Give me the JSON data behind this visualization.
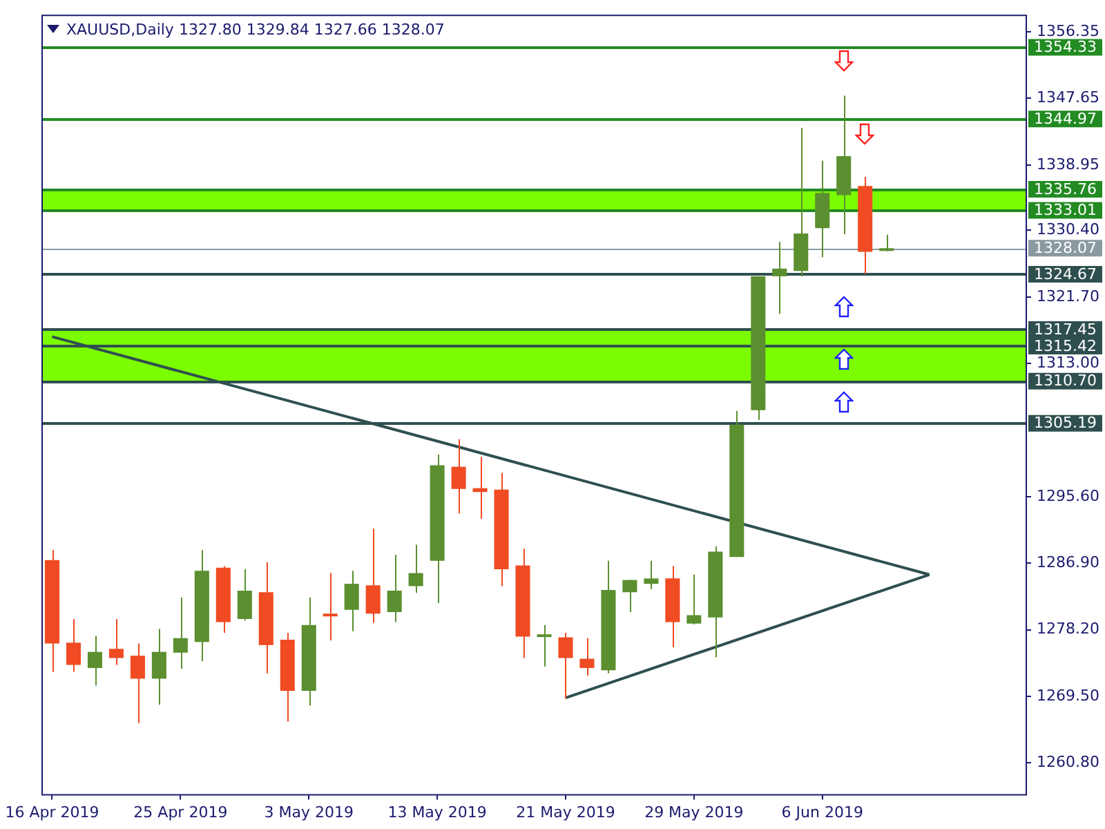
{
  "chart_data": {
    "type": "candlestick",
    "title": "XAUUSD,Daily 1327.80 1329.84 1327.66 1328.07",
    "categories": [
      "16 Apr 2019",
      null,
      null,
      null,
      null,
      null,
      "25 Apr 2019",
      null,
      null,
      null,
      null,
      null,
      "3 May 2019",
      null,
      null,
      null,
      null,
      null,
      "13 May 2019",
      null,
      null,
      null,
      null,
      null,
      "21 May 2019",
      null,
      null,
      null,
      null,
      null,
      "29 May 2019",
      null,
      null,
      null,
      null,
      null,
      "6 Jun 2019",
      null,
      null,
      null,
      null,
      null,
      null,
      null,
      null,
      null
    ],
    "ohlc": [
      [
        1287.3,
        1288.6,
        1272.7,
        1276.4
      ],
      [
        1276.5,
        1279.6,
        1272.7,
        1273.6
      ],
      [
        1273.2,
        1277.4,
        1270.9,
        1275.3
      ],
      [
        1275.7,
        1279.6,
        1273.6,
        1274.5
      ],
      [
        1274.8,
        1276.4,
        1266.0,
        1271.8
      ],
      [
        1271.8,
        1278.3,
        1268.4,
        1275.3
      ],
      [
        1275.2,
        1282.4,
        1273.1,
        1277.1
      ],
      [
        1276.6,
        1288.6,
        1274.1,
        1285.9
      ],
      [
        1286.3,
        1286.5,
        1277.8,
        1279.2
      ],
      [
        1279.6,
        1286.1,
        1279.4,
        1283.3
      ],
      [
        1283.1,
        1287.0,
        1272.5,
        1276.2
      ],
      [
        1276.9,
        1277.8,
        1266.2,
        1270.2
      ],
      [
        1270.2,
        1282.4,
        1268.3,
        1278.8
      ],
      [
        1280.3,
        1285.6,
        1276.8,
        1280.0
      ],
      [
        1280.8,
        1285.9,
        1278.0,
        1284.2
      ],
      [
        1284.0,
        1291.4,
        1279.1,
        1280.3
      ],
      [
        1280.5,
        1288.0,
        1279.2,
        1283.3
      ],
      [
        1283.9,
        1289.3,
        1283.0,
        1285.6
      ],
      [
        1287.2,
        1301.1,
        1281.7,
        1299.7
      ],
      [
        1299.5,
        1303.1,
        1293.4,
        1296.6
      ],
      [
        1296.7,
        1300.8,
        1292.7,
        1296.2
      ],
      [
        1296.5,
        1298.7,
        1283.9,
        1286.1
      ],
      [
        1286.6,
        1288.8,
        1274.5,
        1277.3
      ],
      [
        1277.3,
        1278.8,
        1273.4,
        1277.6
      ],
      [
        1277.2,
        1277.8,
        1269.2,
        1274.5
      ],
      [
        1274.4,
        1277.1,
        1272.2,
        1273.2
      ],
      [
        1272.9,
        1287.2,
        1272.5,
        1283.4
      ],
      [
        1283.1,
        1284.7,
        1280.5,
        1284.7
      ],
      [
        1284.2,
        1287.2,
        1283.5,
        1284.9
      ],
      [
        1284.9,
        1286.5,
        1275.9,
        1279.2
      ],
      [
        1279.0,
        1285.4,
        1278.9,
        1280.1
      ],
      [
        1279.8,
        1289.1,
        1274.6,
        1288.4
      ],
      [
        1287.7,
        1306.8,
        1287.7,
        1305.0
      ],
      [
        1306.9,
        1324.4,
        1305.6,
        1324.4
      ],
      [
        1324.4,
        1328.9,
        1319.5,
        1325.4
      ],
      [
        1325.1,
        1343.8,
        1324.4,
        1330.0
      ],
      [
        1330.7,
        1339.5,
        1326.9,
        1335.3
      ],
      [
        1335.0,
        1348.0,
        1329.9,
        1340.1
      ],
      [
        1336.2,
        1337.4,
        1324.7,
        1327.6
      ],
      [
        1327.8,
        1329.84,
        1327.66,
        1328.07
      ],
      null,
      null,
      null,
      null,
      null,
      null
    ],
    "colors": [
      "#f04b22",
      "#f04b22",
      "#5b8f2f",
      "#f04b22",
      "#f04b22",
      "#5b8f2f",
      "#5b8f2f",
      "#5b8f2f",
      "#f04b22",
      "#5b8f2f",
      "#f04b22",
      "#f04b22",
      "#5b8f2f",
      "#f04b22",
      "#5b8f2f",
      "#f04b22",
      "#5b8f2f",
      "#5b8f2f",
      "#5b8f2f",
      "#f04b22",
      "#f04b22",
      "#f04b22",
      "#f04b22",
      "#5b8f2f",
      "#f04b22",
      "#f04b22",
      "#5b8f2f",
      "#5b8f2f",
      "#5b8f2f",
      "#f04b22",
      "#5b8f2f",
      "#5b8f2f",
      "#5b8f2f",
      "#5b8f2f",
      "#5b8f2f",
      "#5b8f2f",
      "#5b8f2f",
      "#5b8f2f",
      "#f04b22",
      "#5b8f2f",
      null,
      null,
      null,
      null,
      null,
      null
    ],
    "series": [
      {
        "type": "line",
        "color": "#2f4f4f",
        "values": [
          1316.5,
          null,
          null,
          null,
          null,
          null,
          null,
          null,
          null,
          null,
          null,
          null,
          null,
          null,
          null,
          null,
          null,
          null,
          null,
          null,
          null,
          null,
          null,
          null,
          null,
          null,
          null,
          null,
          null,
          null,
          null,
          null,
          null,
          null,
          null,
          null,
          null,
          null,
          null,
          null,
          null,
          1285.4,
          null,
          null,
          null,
          null
        ]
      },
      {
        "type": "line",
        "color": "#2f4f4f",
        "values": [
          null,
          null,
          null,
          null,
          null,
          null,
          null,
          null,
          null,
          null,
          null,
          null,
          null,
          null,
          null,
          null,
          null,
          null,
          null,
          null,
          null,
          null,
          null,
          null,
          1269.3,
          null,
          null,
          null,
          null,
          null,
          null,
          null,
          null,
          null,
          null,
          null,
          null,
          null,
          null,
          null,
          null,
          1285.4,
          null,
          null,
          null,
          null
        ]
      }
    ],
    "ylim": [
      1256.7,
      1358.6
    ],
    "yticks": [
      1356.35,
      1347.65,
      1338.95,
      {
        "value": 1330.4,
        "label": "1330.40"
      },
      {
        "value": 1321.7,
        "label": "1321.70"
      },
      {
        "value": 1313,
        "label": "1313.00"
      },
      {
        "value": 1295.6,
        "label": "1295.60"
      },
      {
        "value": 1286.9,
        "label": "1286.90"
      },
      {
        "value": 1278.2,
        "label": "1278.20"
      },
      {
        "value": 1269.5,
        "label": "1269.50"
      },
      {
        "value": 1260.8,
        "label": "1260.80"
      }
    ],
    "bands": [
      {
        "axis": "y",
        "from": 1333.01,
        "to": 1335.76,
        "color": "#7cfc00"
      },
      {
        "axis": "y",
        "from": 1310.7,
        "to": 1317.45,
        "color": "#7cfc00"
      }
    ],
    "ref_lines": [
      {
        "axis": "y",
        "value": 1354.33,
        "label": "1354.33",
        "color": "#228b22"
      },
      {
        "axis": "y",
        "value": 1344.97,
        "label": "1344.97",
        "color": "#228b22"
      },
      {
        "axis": "y",
        "value": 1335.76,
        "label": "1335.76",
        "color": "#228b22"
      },
      {
        "axis": "y",
        "value": 1333.01,
        "label": "1333.01",
        "color": "#228b22"
      },
      {
        "axis": "y",
        "value": 1328.07,
        "label": "1328.07",
        "color": "#8a9aa0"
      },
      {
        "axis": "y",
        "value": 1324.67,
        "label": "1324.67",
        "color": "#2f4f4f"
      },
      {
        "axis": "y",
        "value": 1317.45,
        "label": "1317.45",
        "color": "#2f4f4f"
      },
      {
        "axis": "y",
        "value": 1315.42,
        "label": "1315.42",
        "color": "#2f4f4f"
      },
      {
        "axis": "y",
        "value": 1310.7,
        "label": "1310.70",
        "color": "#2f4f4f"
      },
      {
        "axis": "y",
        "value": 1305.19,
        "label": "1305.19",
        "color": "#2f4f4f"
      }
    ],
    "grid": false,
    "legend": false
  }
}
